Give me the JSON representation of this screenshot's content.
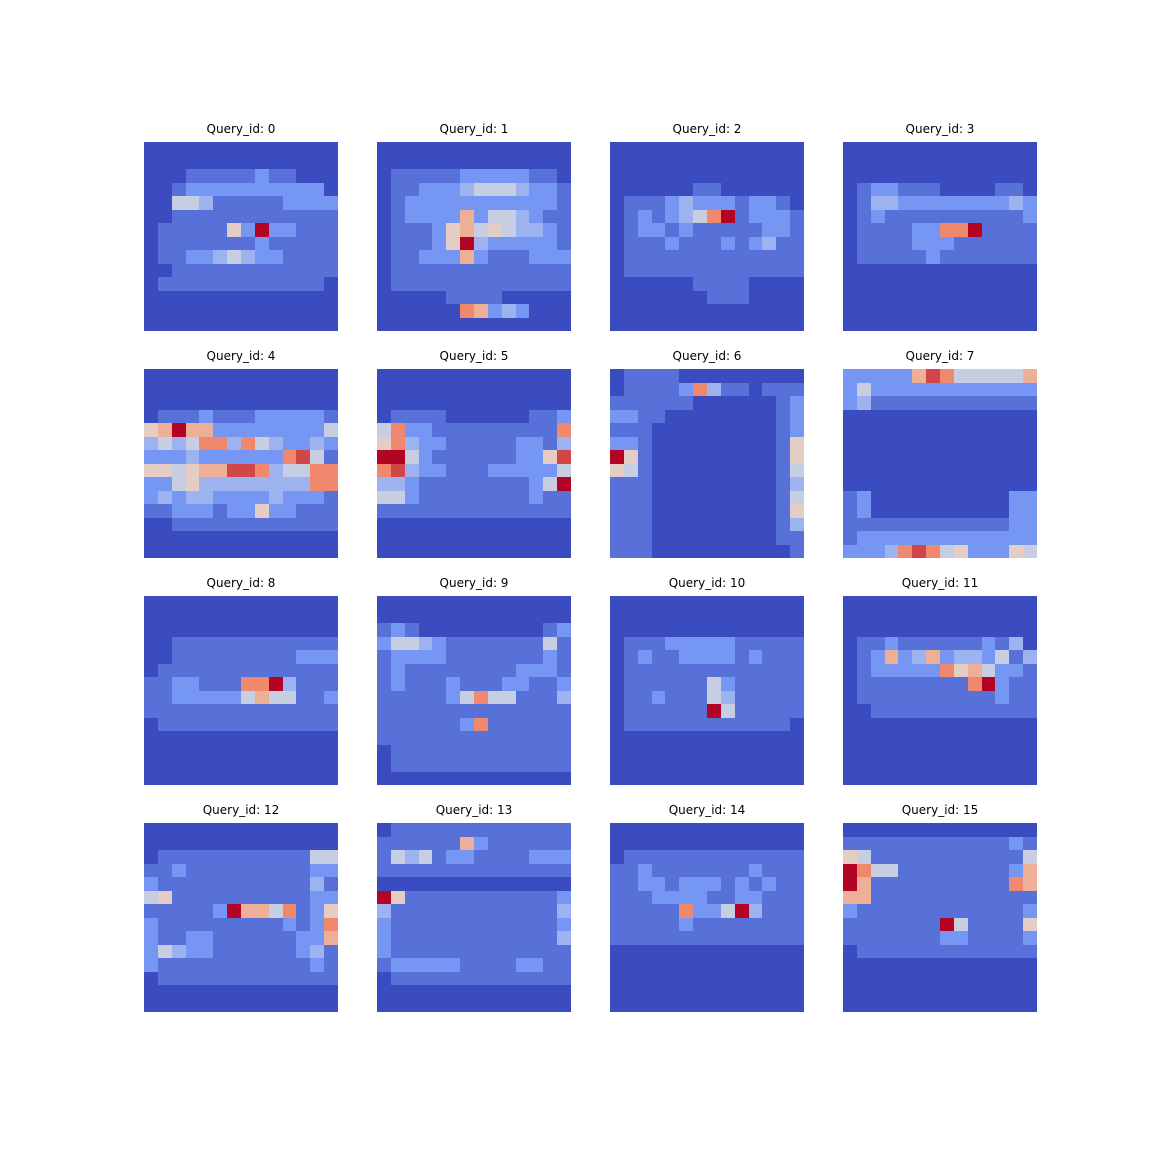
{
  "chart_data": {
    "type": "heatmap",
    "colormap": "coolwarm",
    "vmin": 0,
    "vmax": 9,
    "grid": false,
    "panels": [
      {
        "title": "Query_id: 0",
        "grid": [
          "00000000000000",
          "00000000000000",
          "00011111211000",
          "00122222222220",
          "00443111112222",
          "00111111111111",
          "01111152922111",
          "01111111211111",
          "01122343221111",
          "00111111111111",
          "01111111111110",
          "00000000000000",
          "00000000000000",
          "00000000000000"
        ]
      },
      {
        "title": "Query_id: 1",
        "grid": [
          "00000000000000",
          "00000000000000",
          "01111122222110",
          "01122234443221",
          "01222222222221",
          "01222262443211",
          "01112564543321",
          "01112593222221",
          "01122262111222",
          "01111111111111",
          "01111111111111",
          "00000111100000",
          "00000076232000",
          "00000000000000"
        ]
      },
      {
        "title": "Query_id: 2",
        "grid": [
          "00000000000000",
          "00000000000000",
          "00000000000000",
          "00000011000000",
          "01112322212210",
          "01212347912221",
          "01221211111221",
          "01112111212311",
          "01111111111111",
          "01111111111111",
          "00000011110000",
          "00000001110000",
          "00000000000000",
          "00000000000000"
        ]
      },
      {
        "title": "Query_id: 3",
        "grid": [
          "00000000000000",
          "00000000000000",
          "00000000000000",
          "01221110000110",
          "01332222222232",
          "01211111111112",
          "01111227791111",
          "01111222111111",
          "01111121111111",
          "00000000000000",
          "00000000000000",
          "00000000000000",
          "00000000000000",
          "00000000000000"
        ]
      },
      {
        "title": "Query_id: 4",
        "grid": [
          "00000000000000",
          "00000000000000",
          "00000000000000",
          "01112111222221",
          "56966222222224",
          "34347737432232",
          "22232222227841",
          "55456688734477",
          "22453333333377",
          "23233222232221",
          "11222122522111",
          "00111111111111",
          "00000000000000",
          "00000000000000"
        ]
      },
      {
        "title": "Query_id: 5",
        "grid": [
          "00000000000000",
          "00000000000000",
          "00000000000000",
          "01111000000112",
          "47221111111117",
          "57322111112213",
          "99421111112258",
          "78322111222224",
          "33211111111249",
          "44211111111211",
          "11111111111111",
          "00000000000000",
          "00000000000000",
          "00000000000000"
        ]
      },
      {
        "title": "Query_id: 6",
        "grid": [
          "01111000000000",
          "01111273110111",
          "11111100000012",
          "22110000000012",
          "11100000000012",
          "22100000000015",
          "95100000000015",
          "54100000000014",
          "11100000000013",
          "11100000000014",
          "11100000000015",
          "11100000000013",
          "11100000000011",
          "11100000000001"
        ]
      },
      {
        "title": "Query_id: 7",
        "grid": [
          "22222687444446",
          "24222222222222",
          "23111111111111",
          "00000000000000",
          "00000000000000",
          "00000000000000",
          "00000000000000",
          "00000000000000",
          "00000000000000",
          "12000000000022",
          "12000000000022",
          "11111111111122",
          "12222222222222",
          "22237874522254"
        ]
      },
      {
        "title": "Query_id: 8",
        "grid": [
          "00000000000000",
          "00000000000000",
          "00000000000000",
          "00111111111111",
          "00111111111222",
          "01111111111111",
          "11221117793111",
          "11222224644112",
          "11111111111111",
          "01111111111111",
          "00000000000000",
          "00000000000000",
          "00000000000000",
          "00000000000000"
        ]
      },
      {
        "title": "Query_id: 9",
        "grid": [
          "00000000000000",
          "00000000000000",
          "12100000000012",
          "24432111111141",
          "12222111111121",
          "12111111112221",
          "12111211122112",
          "11111247441113",
          "11111111111111",
          "11111127111111",
          "11111111111111",
          "01111111111111",
          "01111111111111",
          "00000000000000"
        ]
      },
      {
        "title": "Query_id: 10",
        "grid": [
          "00000000000000",
          "00000000000000",
          "00000000000000",
          "01112222211111",
          "01211222212111",
          "01111111111111",
          "01111114211111",
          "01121114311111",
          "01111119411111",
          "01111111111110",
          "00000000000000",
          "00000000000000",
          "00000000000000",
          "00000000000000"
        ]
      },
      {
        "title": "Query_id: 11",
        "grid": [
          "00000000000000",
          "00000000000000",
          "00000000000000",
          "01121111112130",
          "01262362332413",
          "01222227564221",
          "01111111179211",
          "01111111111211",
          "00111111111111",
          "00000000000000",
          "00000000000000",
          "00000000000000",
          "00000000000000",
          "00000000000000"
        ]
      },
      {
        "title": "Query_id: 12",
        "grid": [
          "00000000000000",
          "00000000000000",
          "01111111111144",
          "11211111111122",
          "21111111111131",
          "45111111111122",
          "11111296647125",
          "21111111112127",
          "21122111111226",
          "24322111111231",
          "21111111111121",
          "01111111111111",
          "00000000000000",
          "00000000000000"
        ]
      },
      {
        "title": "Query_id: 13",
        "grid": [
          "01111111111111",
          "11111162111111",
          "14341221111222",
          "11111111111111",
          "00000000000000",
          "95111111111112",
          "31111111111113",
          "21111111111112",
          "21111111111113",
          "21111111111111",
          "12222211112211",
          "01111111111111",
          "00000000000000",
          "00000000000000"
        ]
      },
      {
        "title": "Query_id: 14",
        "grid": [
          "00000000000000",
          "00000000000000",
          "01111111111111",
          "11211111112111",
          "11221222121211",
          "11122221122111",
          "11111722493111",
          "11111211111111",
          "11111111111111",
          "00000000000000",
          "00000000000000",
          "00000000000000",
          "00000000000000",
          "00000000000000"
        ]
      },
      {
        "title": "Query_id: 15",
        "grid": [
          "00000000000000",
          "11111111111121",
          "54111111111114",
          "97441111111126",
          "96111111111176",
          "66111111111111",
          "21111111111112",
          "11111119411115",
          "11111112211112",
          "01111111111111",
          "00000000000000",
          "00000000000000",
          "00000000000000",
          "00000000000000"
        ]
      }
    ]
  }
}
